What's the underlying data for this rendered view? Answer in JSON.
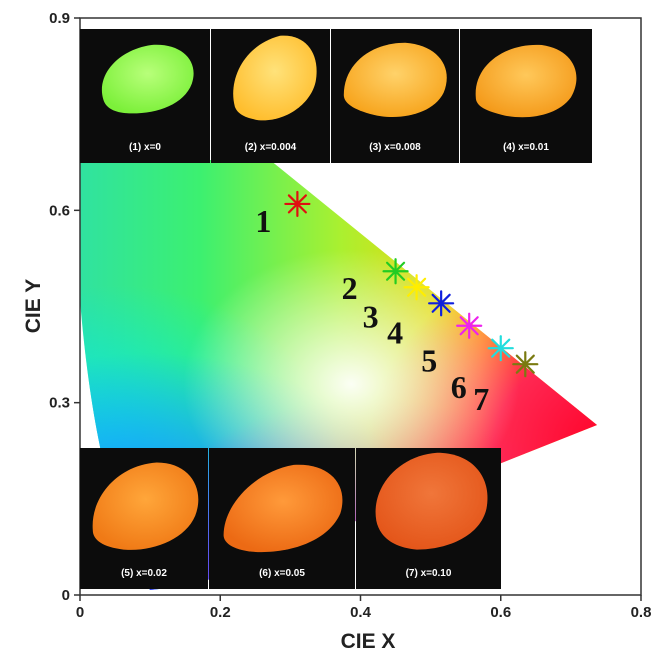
{
  "chart_data": {
    "type": "scatter",
    "xlabel": "CIE X",
    "ylabel": "CIE Y",
    "xlim": [
      0,
      0.8
    ],
    "ylim": [
      0,
      0.9
    ],
    "xticks": [
      "0",
      "0.2",
      "0.4",
      "0.6",
      "0.8"
    ],
    "yticks": [
      "0",
      "0.3",
      "0.6",
      "0.9"
    ],
    "grid": false,
    "points": [
      {
        "label": "1",
        "x": 0.31,
        "y": 0.61,
        "color": "#e01010"
      },
      {
        "label": "2",
        "x": 0.45,
        "y": 0.505,
        "color": "#22cc22"
      },
      {
        "label": "3",
        "x": 0.48,
        "y": 0.48,
        "color": "#ffee00"
      },
      {
        "label": "4",
        "x": 0.515,
        "y": 0.455,
        "color": "#1020dd"
      },
      {
        "label": "5",
        "x": 0.555,
        "y": 0.42,
        "color": "#ee22ee"
      },
      {
        "label": "6",
        "x": 0.6,
        "y": 0.385,
        "color": "#22dddd"
      },
      {
        "label": "7",
        "x": 0.635,
        "y": 0.36,
        "color": "#7a7a10"
      }
    ],
    "photos": [
      {
        "caption": "(1) x=0",
        "glow": "#7cf03a",
        "core": "#b8ff7a"
      },
      {
        "caption": "(2) x=0.004",
        "glow": "#ffbe2e",
        "core": "#ffe27a"
      },
      {
        "caption": "(3) x=0.008",
        "glow": "#f7a41c",
        "core": "#ffd26a"
      },
      {
        "caption": "(4) x=0.01",
        "glow": "#f49a1a",
        "core": "#ffc85a"
      },
      {
        "caption": "(5) x=0.02",
        "glow": "#f07a16",
        "core": "#ffa63a"
      },
      {
        "caption": "(6) x=0.05",
        "glow": "#ec6a14",
        "core": "#ff9a3a"
      },
      {
        "caption": "(7) x=0.10",
        "glow": "#e4561a",
        "core": "#f0763a"
      }
    ]
  }
}
